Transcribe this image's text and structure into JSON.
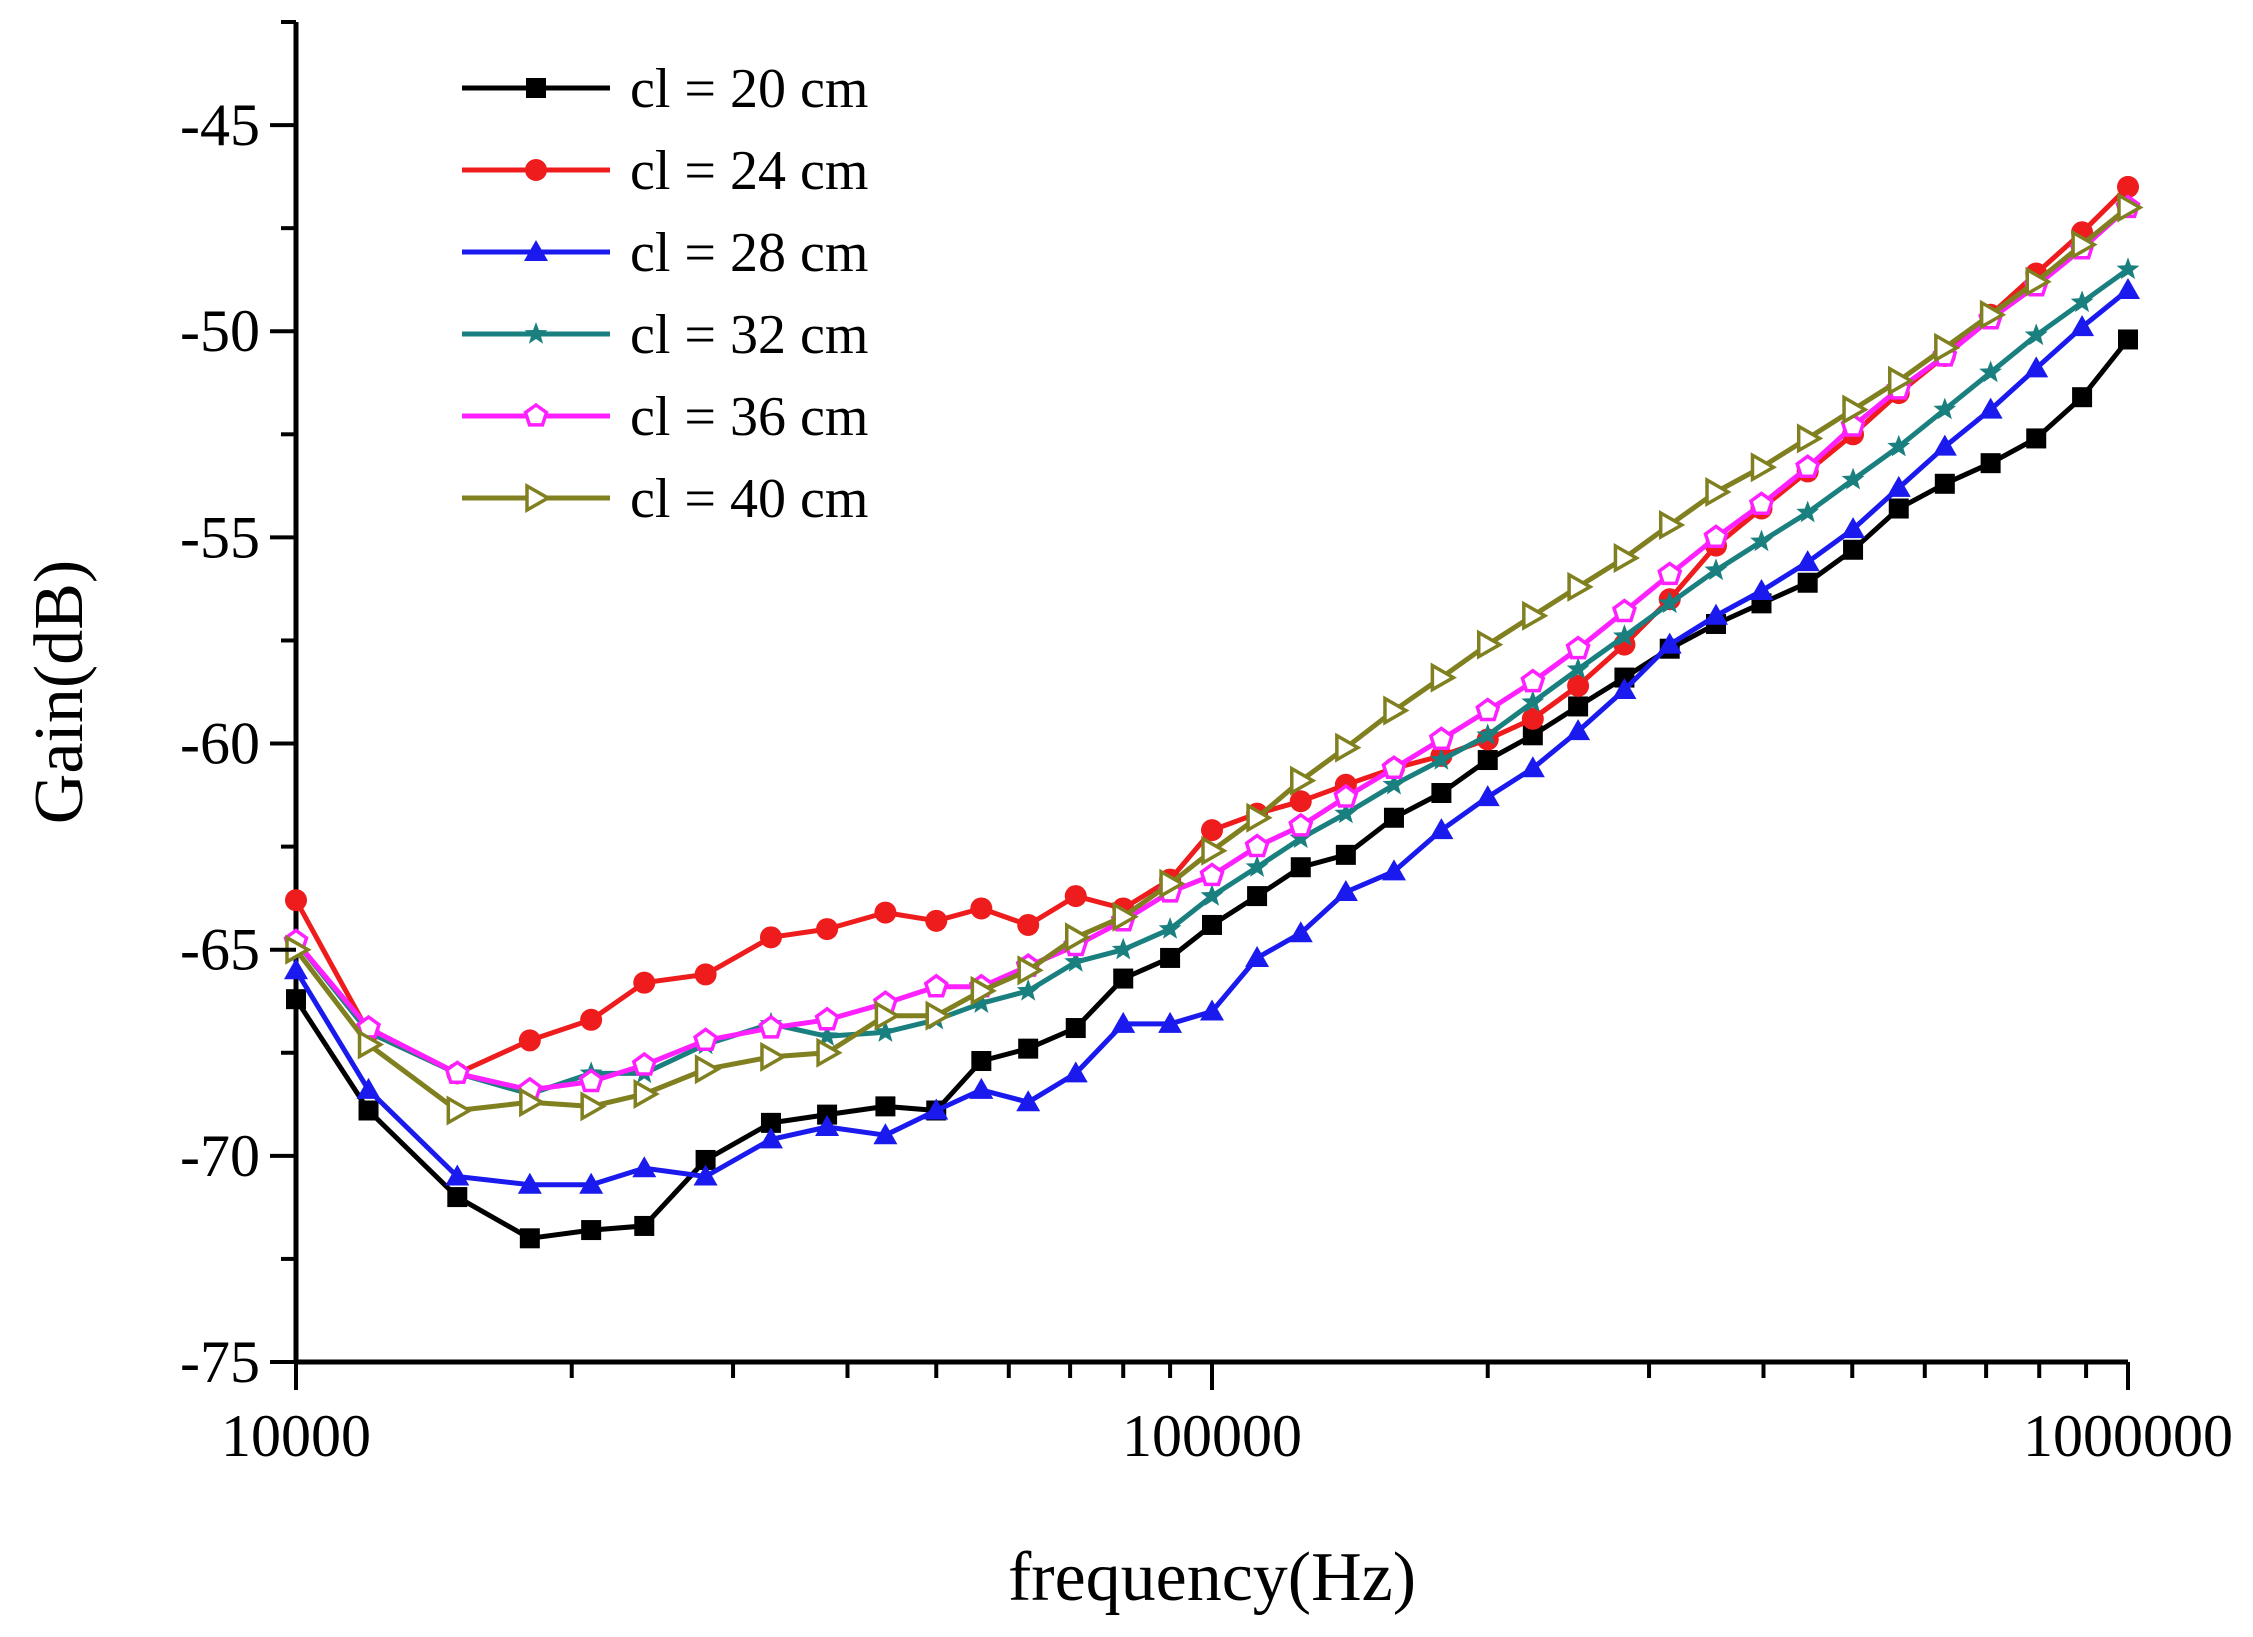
{
  "chart_data": {
    "type": "line",
    "title": "",
    "xlabel": "frequency(Hz)",
    "ylabel": "Gain(dB)",
    "xscale": "log",
    "xlim": [
      10000,
      1000000
    ],
    "ylim": [
      -75,
      -42.5
    ],
    "x_ticks": [
      10000,
      100000,
      1000000
    ],
    "x_tick_labels": [
      "10000",
      "100000",
      "1000000"
    ],
    "y_ticks": [
      -75,
      -70,
      -65,
      -60,
      -55,
      -50,
      -45
    ],
    "y_tick_labels": [
      "-75",
      "-70",
      "-65",
      "-60",
      "-55",
      "-50",
      "-45"
    ],
    "legend_position": "top-left",
    "series": [
      {
        "name": "cl = 20 cm",
        "color": "#000000",
        "marker": "square",
        "x": [
          10000,
          12000,
          15000,
          18000,
          21000,
          24000,
          28000,
          33000,
          38000,
          44000,
          50000,
          56000,
          63000,
          71000,
          80000,
          90000,
          100000,
          112000,
          125000,
          140000,
          158000,
          178000,
          200000,
          224000,
          251000,
          282000,
          316000,
          355000,
          398000,
          447000,
          501000,
          562000,
          631000,
          708000,
          794000,
          891000,
          1000000
        ],
        "values": [
          -66.2,
          -68.9,
          -71.0,
          -72.0,
          -71.8,
          -71.7,
          -70.1,
          -69.2,
          -69.0,
          -68.8,
          -68.9,
          -67.7,
          -67.4,
          -66.9,
          -65.7,
          -65.2,
          -64.4,
          -63.7,
          -63.0,
          -62.7,
          -61.8,
          -61.2,
          -60.4,
          -59.8,
          -59.1,
          -58.4,
          -57.7,
          -57.1,
          -56.6,
          -56.1,
          -55.3,
          -54.3,
          -53.7,
          -53.2,
          -52.6,
          -51.6,
          -50.2
        ]
      },
      {
        "name": "cl = 24 cm",
        "color": "#ee1c1c",
        "marker": "circle",
        "x": [
          10000,
          12000,
          15000,
          18000,
          21000,
          24000,
          28000,
          33000,
          38000,
          44000,
          50000,
          56000,
          63000,
          71000,
          80000,
          90000,
          100000,
          112000,
          125000,
          140000,
          158000,
          178000,
          200000,
          224000,
          251000,
          282000,
          316000,
          355000,
          398000,
          447000,
          501000,
          562000,
          631000,
          708000,
          794000,
          891000,
          1000000
        ],
        "values": [
          -63.8,
          -67.0,
          -68.0,
          -67.2,
          -66.7,
          -65.8,
          -65.6,
          -64.7,
          -64.5,
          -64.1,
          -64.3,
          -64.0,
          -64.4,
          -63.7,
          -64.0,
          -63.3,
          -62.1,
          -61.7,
          -61.4,
          -61.0,
          -60.6,
          -60.3,
          -59.9,
          -59.4,
          -58.6,
          -57.6,
          -56.5,
          -55.2,
          -54.3,
          -53.4,
          -52.5,
          -51.5,
          -50.6,
          -49.6,
          -48.6,
          -47.6,
          -46.5
        ]
      },
      {
        "name": "cl = 28 cm",
        "color": "#1a1aee",
        "marker": "triangle-up",
        "x": [
          10000,
          12000,
          15000,
          18000,
          21000,
          24000,
          28000,
          33000,
          38000,
          44000,
          50000,
          56000,
          63000,
          71000,
          80000,
          90000,
          100000,
          112000,
          125000,
          140000,
          158000,
          178000,
          200000,
          224000,
          251000,
          282000,
          316000,
          355000,
          398000,
          447000,
          501000,
          562000,
          631000,
          708000,
          794000,
          891000,
          1000000
        ],
        "values": [
          -65.5,
          -68.4,
          -70.5,
          -70.7,
          -70.7,
          -70.3,
          -70.5,
          -69.6,
          -69.3,
          -69.5,
          -68.9,
          -68.4,
          -68.7,
          -68.0,
          -66.8,
          -66.8,
          -66.5,
          -65.2,
          -64.6,
          -63.6,
          -63.1,
          -62.1,
          -61.3,
          -60.6,
          -59.7,
          -58.7,
          -57.6,
          -56.9,
          -56.3,
          -55.6,
          -54.8,
          -53.8,
          -52.8,
          -51.9,
          -50.9,
          -49.9,
          -49.0
        ]
      },
      {
        "name": "cl = 32 cm",
        "color": "#1a7f7f",
        "marker": "star",
        "x": [
          10000,
          12000,
          15000,
          18000,
          21000,
          24000,
          28000,
          33000,
          38000,
          44000,
          50000,
          56000,
          63000,
          71000,
          80000,
          90000,
          100000,
          112000,
          125000,
          140000,
          158000,
          178000,
          200000,
          224000,
          251000,
          282000,
          316000,
          355000,
          398000,
          447000,
          501000,
          562000,
          631000,
          708000,
          794000,
          891000,
          1000000
        ],
        "values": [
          -64.8,
          -67.0,
          -68.0,
          -68.5,
          -68.0,
          -68.0,
          -67.3,
          -66.8,
          -67.1,
          -67.0,
          -66.7,
          -66.3,
          -66.0,
          -65.3,
          -65.0,
          -64.5,
          -63.7,
          -63.0,
          -62.3,
          -61.7,
          -61.0,
          -60.4,
          -59.8,
          -59.0,
          -58.2,
          -57.4,
          -56.6,
          -55.8,
          -55.1,
          -54.4,
          -53.6,
          -52.8,
          -51.9,
          -51.0,
          -50.1,
          -49.3,
          -48.5
        ]
      },
      {
        "name": "cl = 36 cm",
        "color": "#ff20ff",
        "marker": "pentagon",
        "x": [
          10000,
          12000,
          15000,
          18000,
          21000,
          24000,
          28000,
          33000,
          38000,
          44000,
          50000,
          56000,
          63000,
          71000,
          80000,
          90000,
          100000,
          112000,
          125000,
          140000,
          158000,
          178000,
          200000,
          224000,
          251000,
          282000,
          316000,
          355000,
          398000,
          447000,
          501000,
          562000,
          631000,
          708000,
          794000,
          891000,
          1000000
        ],
        "values": [
          -64.8,
          -66.9,
          -68.0,
          -68.4,
          -68.2,
          -67.8,
          -67.2,
          -66.9,
          -66.7,
          -66.3,
          -65.9,
          -65.9,
          -65.4,
          -64.9,
          -64.3,
          -63.6,
          -63.2,
          -62.5,
          -62.0,
          -61.3,
          -60.6,
          -59.9,
          -59.2,
          -58.5,
          -57.7,
          -56.8,
          -55.9,
          -55.0,
          -54.2,
          -53.3,
          -52.3,
          -51.4,
          -50.6,
          -49.7,
          -48.9,
          -48.0,
          -47.0
        ]
      },
      {
        "name": "cl = 40 cm",
        "color": "#808020",
        "marker": "triangle-right",
        "x": [
          10000,
          12000,
          15000,
          18000,
          21000,
          24000,
          28000,
          33000,
          38000,
          44000,
          50000,
          56000,
          63000,
          71000,
          80000,
          90000,
          100000,
          112000,
          125000,
          140000,
          158000,
          178000,
          200000,
          224000,
          251000,
          282000,
          316000,
          355000,
          398000,
          447000,
          501000,
          562000,
          631000,
          708000,
          794000,
          891000,
          1000000
        ],
        "values": [
          -65.0,
          -67.3,
          -68.9,
          -68.7,
          -68.8,
          -68.5,
          -67.9,
          -67.6,
          -67.5,
          -66.6,
          -66.6,
          -66.0,
          -65.5,
          -64.7,
          -64.2,
          -63.4,
          -62.6,
          -61.8,
          -60.9,
          -60.1,
          -59.2,
          -58.4,
          -57.6,
          -56.9,
          -56.2,
          -55.5,
          -54.7,
          -53.9,
          -53.3,
          -52.6,
          -51.9,
          -51.2,
          -50.4,
          -49.6,
          -48.8,
          -47.9,
          -47.0
        ]
      }
    ]
  }
}
